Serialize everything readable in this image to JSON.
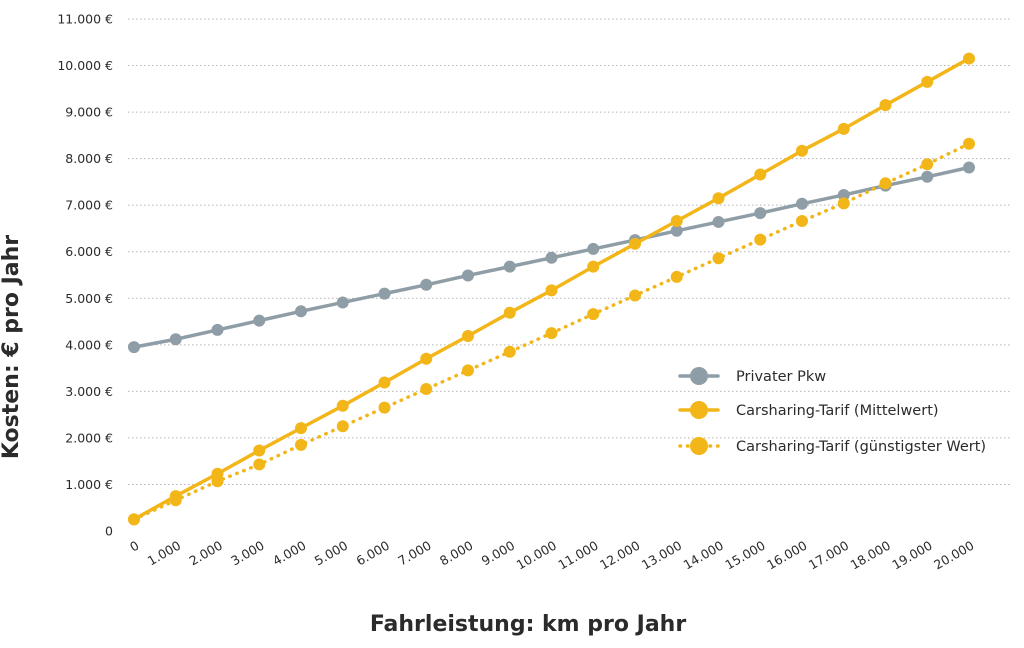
{
  "chart_data": {
    "type": "line",
    "xlabel": "Fahrleistung: km pro Jahr",
    "ylabel": "Kosten: € pro Jahr",
    "ylim": [
      0,
      11000
    ],
    "y_ticks": [
      "0",
      "1.000 €",
      "2.000 €",
      "3.000 €",
      "4.000 €",
      "5.000 €",
      "6.000 €",
      "7.000 €",
      "8.000 €",
      "9.000 €",
      "10.000 €",
      "11.000 €"
    ],
    "x": [
      0,
      1000,
      2000,
      3000,
      4000,
      5000,
      6000,
      7000,
      8000,
      9000,
      10000,
      11000,
      12000,
      13000,
      14000,
      15000,
      16000,
      17000,
      18000,
      19000,
      20000
    ],
    "x_ticks": [
      "0",
      "1.000",
      "2.000",
      "3.000",
      "4.000",
      "5.000",
      "6.000",
      "7.000",
      "8.000",
      "9.000",
      "10.000",
      "11.000",
      "12.000",
      "13.000",
      "14.000",
      "15.000",
      "16.000",
      "17.000",
      "18.000",
      "19.000",
      "20.000"
    ],
    "grid": "horizontal dotted",
    "legend_position": "right",
    "series": [
      {
        "name": "Privater Pkw",
        "color": "#8f9ea6",
        "style": "solid",
        "values": [
          3950,
          4120,
          4320,
          4520,
          4720,
          4910,
          5100,
          5290,
          5490,
          5680,
          5870,
          6060,
          6250,
          6450,
          6640,
          6830,
          7030,
          7220,
          7420,
          7610,
          7810
        ]
      },
      {
        "name": "Carsharing-Tarif (Mittelwert)",
        "color": "#f2b619",
        "style": "solid",
        "values": [
          250,
          750,
          1230,
          1730,
          2210,
          2690,
          3190,
          3700,
          4190,
          4690,
          5170,
          5680,
          6170,
          6660,
          7150,
          7660,
          8170,
          8640,
          9150,
          9650,
          10150
        ]
      },
      {
        "name": "Carsharing-Tarif (günstigster Wert)",
        "color": "#f2b619",
        "style": "dotted",
        "values": [
          250,
          660,
          1070,
          1430,
          1850,
          2250,
          2650,
          3050,
          3450,
          3850,
          4250,
          4660,
          5060,
          5460,
          5860,
          6260,
          6660,
          7040,
          7470,
          7880,
          8320
        ]
      }
    ]
  }
}
